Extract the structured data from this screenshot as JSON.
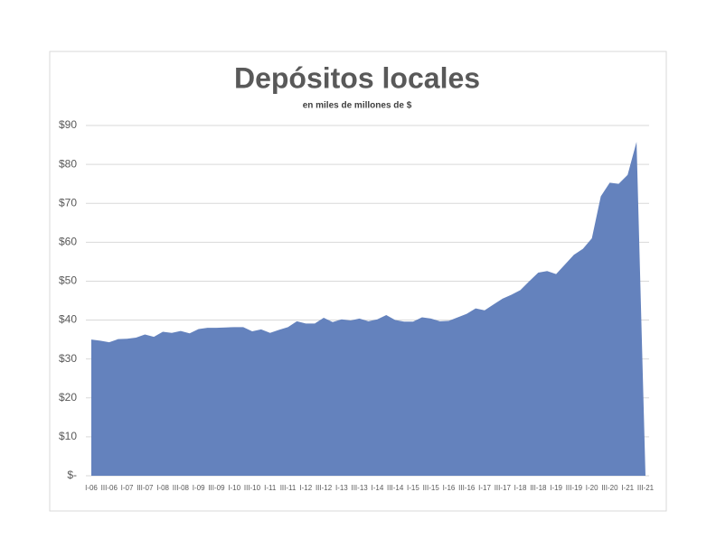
{
  "chart_data": {
    "type": "area",
    "title": "Depósitos locales",
    "subtitle": "en miles de millones de $",
    "categories": [
      "I-06",
      null,
      "III-06",
      null,
      "I-07",
      null,
      "III-07",
      null,
      "I-08",
      null,
      "III-08",
      null,
      "I-09",
      null,
      "III-09",
      null,
      "I-10",
      null,
      "III-10",
      null,
      "I-11",
      null,
      "III-11",
      null,
      "I-12",
      null,
      "III-12",
      null,
      "I-13",
      null,
      "III-13",
      null,
      "I-14",
      null,
      "III-14",
      null,
      "I-15",
      null,
      "III-15",
      null,
      "I-16",
      null,
      "III-16",
      null,
      "I-17",
      null,
      "III-17",
      null,
      "I-18",
      null,
      "III-18",
      null,
      "I-19",
      null,
      "III-19",
      null,
      "I-20",
      null,
      "III-20",
      null,
      "I-21",
      null,
      "III-21"
    ],
    "values": [
      35,
      34.7,
      34.3,
      35.1,
      35.2,
      35.5,
      36.3,
      35.7,
      37.0,
      36.7,
      37.2,
      36.6,
      37.7,
      38.0,
      38.0,
      38.1,
      38.2,
      38.2,
      37.1,
      37.6,
      36.7,
      37.5,
      38.2,
      39.7,
      39.1,
      39.1,
      40.6,
      39.5,
      40.2,
      39.9,
      40.4,
      39.7,
      40.2,
      41.3,
      40.0,
      39.6,
      39.6,
      40.7,
      40.4,
      39.7,
      39.8,
      40.7,
      41.6,
      43.0,
      42.5,
      44.0,
      45.5,
      46.5,
      47.7,
      50.0,
      52.2,
      52.6,
      51.8,
      54.3,
      56.8,
      58.3,
      61.0,
      71.8,
      75.3,
      75.0,
      77.3,
      85.8,
      0
    ],
    "color": "#6482bd",
    "ylim": [
      0,
      90
    ],
    "yticks": [
      {
        "value": 0,
        "label": "$-"
      },
      {
        "value": 10,
        "label": "$10"
      },
      {
        "value": 20,
        "label": "$20"
      },
      {
        "value": 30,
        "label": "$30"
      },
      {
        "value": 40,
        "label": "$40"
      },
      {
        "value": 50,
        "label": "$50"
      },
      {
        "value": 60,
        "label": "$60"
      },
      {
        "value": 70,
        "label": "$70"
      },
      {
        "value": 80,
        "label": "$80"
      },
      {
        "value": 90,
        "label": "$90"
      }
    ],
    "grid": true
  }
}
